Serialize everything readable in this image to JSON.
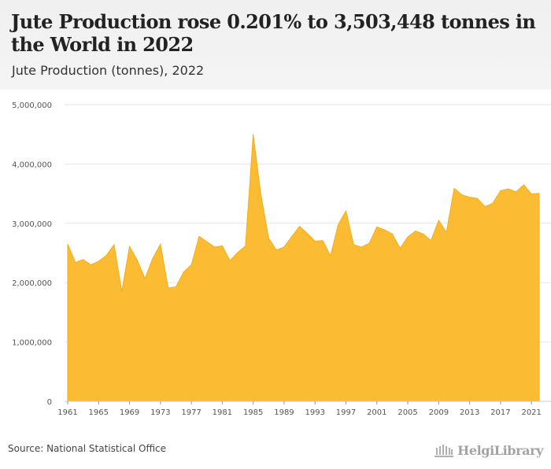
{
  "header": {
    "title": "Jute Production rose 0.201% to 3,503,448 tonnes in the World in 2022",
    "subtitle": "Jute Production (tonnes), 2022"
  },
  "footer": {
    "source": "Source: National Statistical Office",
    "brand": "HelgiLibrary"
  },
  "colors": {
    "area_fill": "#fbbc33",
    "area_stroke": "#f5ad18",
    "grid": "#e6e6e6",
    "axis_text": "#555555"
  },
  "chart_data": {
    "type": "area",
    "title": "",
    "xlabel": "",
    "ylabel": "",
    "xlim": [
      1961,
      2022
    ],
    "ylim": [
      0,
      5000000
    ],
    "grid": true,
    "x_ticks": [
      "1961",
      "1965",
      "1969",
      "1973",
      "1977",
      "1981",
      "1985",
      "1989",
      "1993",
      "1997",
      "2001",
      "2005",
      "2009",
      "2013",
      "2017",
      "2021"
    ],
    "y_ticks": [
      "0",
      "1,000,000",
      "2,000,000",
      "3,000,000",
      "4,000,000",
      "5,000,000"
    ],
    "y_tick_values": [
      0,
      1000000,
      2000000,
      3000000,
      4000000,
      5000000
    ],
    "x": [
      1961,
      1962,
      1963,
      1964,
      1965,
      1966,
      1967,
      1968,
      1969,
      1970,
      1971,
      1972,
      1973,
      1974,
      1975,
      1976,
      1977,
      1978,
      1979,
      1980,
      1981,
      1982,
      1983,
      1984,
      1985,
      1986,
      1987,
      1988,
      1989,
      1990,
      1991,
      1992,
      1993,
      1994,
      1995,
      1996,
      1997,
      1998,
      1999,
      2000,
      2001,
      2002,
      2003,
      2004,
      2005,
      2006,
      2007,
      2008,
      2009,
      2010,
      2011,
      2012,
      2013,
      2014,
      2015,
      2016,
      2017,
      2018,
      2019,
      2020,
      2021,
      2022
    ],
    "series": [
      {
        "values": [
          2650000,
          2340000,
          2390000,
          2300000,
          2360000,
          2460000,
          2640000,
          1850000,
          2610000,
          2380000,
          2070000,
          2410000,
          2650000,
          1910000,
          1930000,
          2180000,
          2300000,
          2780000,
          2690000,
          2600000,
          2620000,
          2370000,
          2510000,
          2620000,
          4500000,
          3480000,
          2750000,
          2550000,
          2600000,
          2780000,
          2950000,
          2830000,
          2700000,
          2710000,
          2450000,
          2980000,
          3210000,
          2640000,
          2600000,
          2660000,
          2940000,
          2890000,
          2820000,
          2580000,
          2770000,
          2870000,
          2820000,
          2710000,
          3050000,
          2850000,
          3590000,
          3480000,
          3440000,
          3420000,
          3280000,
          3340000,
          3550000,
          3580000,
          3530000,
          3650000,
          3496000,
          3503448
        ]
      }
    ]
  }
}
